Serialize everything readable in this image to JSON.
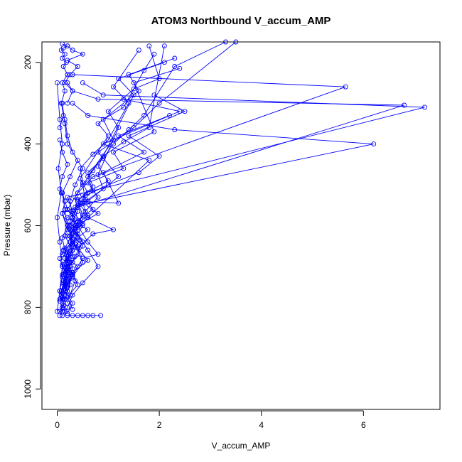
{
  "chart_data": {
    "type": "line",
    "title": "ATOM3 Northbound V_accum_AMP",
    "xlabel": "V_accum_AMP",
    "ylabel": "Pressure (mbar)",
    "xlim": [
      -0.3,
      7.5
    ],
    "ylim": [
      1050,
      150
    ],
    "y_reversed": true,
    "grid": false,
    "x_ticks": [
      0,
      2,
      4,
      6
    ],
    "y_ticks": [
      200,
      400,
      600,
      800,
      1000
    ],
    "x_tick_labels": [
      "0",
      "2",
      "4",
      "6"
    ],
    "y_tick_labels": [
      "200",
      "400",
      "600",
      "800",
      "1000"
    ],
    "series_color": "#0000ff",
    "series": [
      {
        "x": [
          0.05,
          0.1,
          0.12,
          0.08,
          0.15,
          0.2,
          0.1,
          0.05,
          0.12,
          0.3,
          0.2,
          0.15,
          0.1,
          0.25,
          0.4,
          0.2,
          0.15,
          0.1
        ],
        "y": [
          820,
          800,
          780,
          760,
          740,
          720,
          700,
          680,
          660,
          640,
          600,
          560,
          520,
          480,
          440,
          400,
          350,
          300
        ]
      },
      {
        "x": [
          0.1,
          0.2,
          0.3,
          0.5,
          0.8,
          0.6,
          0.4,
          0.3,
          0.25,
          0.35,
          0.5,
          0.3,
          0.2,
          0.15
        ],
        "y": [
          820,
          800,
          770,
          740,
          700,
          660,
          620,
          580,
          540,
          500,
          460,
          420,
          380,
          340
        ]
      },
      {
        "x": [
          0.15,
          0.1,
          0.2,
          0.12,
          0.3,
          0.5,
          0.2,
          0.1,
          0.6,
          1.2,
          0.8,
          1.5,
          2.0,
          3.5
        ],
        "y": [
          810,
          780,
          750,
          720,
          690,
          650,
          610,
          570,
          540,
          480,
          420,
          360,
          300,
          150
        ]
      },
      {
        "x": [
          0.2,
          0.3,
          0.15,
          0.25,
          0.4,
          0.1,
          0.3,
          0.5,
          0.2,
          0.4,
          0.7,
          5.65,
          0.3
        ],
        "y": [
          815,
          790,
          760,
          730,
          700,
          670,
          640,
          600,
          560,
          520,
          480,
          260,
          230
        ]
      },
      {
        "x": [
          0.3,
          0.2,
          0.4,
          0.3,
          0.6,
          0.4,
          0.2,
          0.5,
          0.3,
          0.2,
          7.2,
          0.9,
          0.5
        ],
        "y": [
          805,
          775,
          745,
          715,
          685,
          655,
          625,
          595,
          565,
          530,
          310,
          280,
          250
        ]
      },
      {
        "x": [
          0.1,
          0.25,
          0.35,
          0.2,
          0.45,
          0.3,
          0.6,
          0.2,
          0.4,
          6.2,
          2.3,
          0.6,
          0.3
        ],
        "y": [
          800,
          770,
          735,
          700,
          670,
          640,
          610,
          580,
          550,
          400,
          365,
          330,
          300
        ]
      },
      {
        "x": [
          0.12,
          0.08,
          0.2,
          0.1,
          0.3,
          0.15,
          0.25,
          0.4,
          6.8,
          0.8,
          0.3,
          0.2
        ],
        "y": [
          795,
          760,
          730,
          695,
          660,
          625,
          590,
          555,
          305,
          290,
          270,
          250
        ]
      },
      {
        "x": [
          0.2,
          0.15,
          0.3,
          0.5,
          0.4,
          0.7,
          1.1,
          0.6,
          1.8,
          0.9,
          2.4,
          1.3
        ],
        "y": [
          790,
          755,
          725,
          690,
          655,
          620,
          610,
          580,
          440,
          400,
          320,
          290
        ]
      },
      {
        "x": [
          0.05,
          0.1,
          0.2,
          0.15,
          0.3,
          0.25,
          0.6,
          0.4,
          1.2,
          0.9,
          1.7,
          1.2,
          2.2
        ],
        "y": [
          785,
          750,
          715,
          680,
          645,
          610,
          575,
          540,
          545,
          470,
          420,
          380,
          330
        ]
      },
      {
        "x": [
          0.15,
          0.25,
          0.2,
          0.35,
          0.5,
          0.3,
          0.8,
          0.4,
          1.0,
          1.6,
          2.0,
          1.4,
          2.5,
          1.9
        ],
        "y": [
          780,
          745,
          710,
          675,
          640,
          605,
          570,
          535,
          500,
          470,
          430,
          380,
          320,
          280
        ]
      },
      {
        "x": [
          0.1,
          0.2,
          0.3,
          0.25,
          0.45,
          0.35,
          0.55,
          0.8,
          0.6,
          1.3,
          1.1,
          1.9,
          1.5,
          2.4
        ],
        "y": [
          775,
          740,
          705,
          670,
          635,
          600,
          565,
          530,
          495,
          460,
          420,
          370,
          250,
          215
        ]
      },
      {
        "x": [
          0.08,
          0.12,
          0.25,
          0.2,
          0.4,
          0.3,
          0.7,
          0.5,
          1.0,
          0.8,
          1.5,
          1.2,
          2.1
        ],
        "y": [
          770,
          735,
          700,
          665,
          630,
          595,
          560,
          525,
          490,
          455,
          280,
          240,
          200
        ]
      },
      {
        "x": [
          0.1,
          0.2,
          0.15,
          0.3,
          0.25,
          0.4,
          0.35,
          0.6,
          0.45,
          1.0,
          0.8,
          1.6,
          1.4,
          2.3
        ],
        "y": [
          765,
          730,
          695,
          660,
          625,
          590,
          555,
          520,
          485,
          380,
          350,
          270,
          230,
          190
        ]
      },
      {
        "x": [
          0.05,
          0.1,
          0.2,
          0.15,
          0.3,
          0.5,
          0.4,
          0.7,
          0.6,
          1.1,
          0.9,
          1.3,
          1.7,
          1.9
        ],
        "y": [
          760,
          725,
          690,
          655,
          620,
          585,
          550,
          515,
          480,
          390,
          340,
          310,
          220,
          180
        ]
      },
      {
        "x": [
          0.15,
          0.3,
          0.2,
          0.4,
          0.35,
          0.6,
          0.5,
          0.9,
          0.8,
          1.2,
          1.0,
          1.5,
          2.0,
          1.8
        ],
        "y": [
          755,
          720,
          685,
          650,
          615,
          580,
          545,
          510,
          475,
          360,
          320,
          265,
          240,
          160
        ]
      },
      {
        "x": [
          0.1,
          0.25,
          0.2,
          0.35,
          0.3,
          0.5,
          0.4,
          0.7,
          0.6,
          0.9,
          1.1,
          1.4,
          1.7,
          2.3,
          3.3
        ],
        "y": [
          750,
          715,
          680,
          645,
          610,
          575,
          540,
          505,
          470,
          435,
          400,
          365,
          330,
          210,
          150
        ]
      },
      {
        "x": [
          0.2,
          0.15,
          0.3,
          0.25,
          0.4,
          0.3,
          0.55,
          0.5,
          0.7,
          0.9,
          1.3,
          1.8,
          2.1
        ],
        "y": [
          745,
          710,
          675,
          640,
          605,
          570,
          535,
          500,
          465,
          430,
          395,
          360,
          160
        ]
      },
      {
        "x": [
          0.12,
          0.2,
          0.18,
          0.3,
          0.25,
          0.4,
          0.35,
          0.5,
          0.45,
          0.7,
          1.0,
          1.4,
          1.1,
          1.6
        ],
        "y": [
          740,
          705,
          670,
          635,
          600,
          565,
          530,
          495,
          460,
          425,
          390,
          300,
          260,
          170
        ]
      },
      {
        "x": [
          0.3,
          0.5,
          0.7,
          0.85,
          0.6,
          0.4,
          0.2
        ],
        "y": [
          820,
          820,
          820,
          820,
          820,
          820,
          820
        ]
      },
      {
        "x": [
          0.05,
          0.1,
          0.15,
          0.2,
          0.3,
          0.5,
          0.8,
          0.6,
          0.4,
          0.2,
          0.1
        ],
        "y": [
          810,
          800,
          780,
          760,
          720,
          680,
          670,
          640,
          600,
          560,
          520
        ]
      },
      {
        "x": [
          0.1,
          0.05,
          0.15,
          0.1,
          0.2,
          0.15,
          0.1,
          0.2,
          0.1,
          0.15,
          0.05,
          0.1,
          0.2,
          0.1,
          0.05
        ],
        "y": [
          810,
          780,
          750,
          720,
          690,
          660,
          630,
          600,
          570,
          540,
          510,
          480,
          450,
          420,
          390
        ]
      },
      {
        "x": [
          0.05,
          0.12,
          0.08,
          0.15,
          0.1,
          0.2,
          0.12,
          0.18,
          0.1,
          0.15,
          0.08,
          0.12,
          0.2,
          0.1
        ],
        "y": [
          360,
          330,
          300,
          270,
          250,
          230,
          210,
          200,
          190,
          180,
          170,
          165,
          160,
          155
        ]
      },
      {
        "x": [
          0.2,
          0.3,
          0.15,
          0.25,
          0.4,
          0.2,
          0.5,
          0.3,
          0.2
        ],
        "y": [
          300,
          270,
          250,
          230,
          210,
          195,
          180,
          170,
          160
        ]
      },
      {
        "x": [
          0.0,
          0.05,
          0.1,
          0.05,
          0.0,
          0.08,
          0.02,
          0.1,
          0.05,
          0.0
        ],
        "y": [
          810,
          760,
          700,
          640,
          580,
          520,
          460,
          400,
          340,
          250
        ]
      }
    ]
  }
}
